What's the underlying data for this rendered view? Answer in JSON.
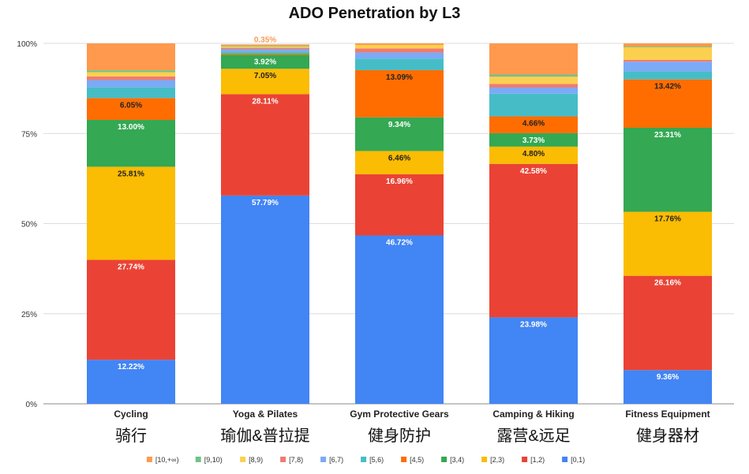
{
  "chart_data": {
    "type": "bar",
    "stacked": true,
    "title": "ADO Penetration by L3",
    "xlabel": "",
    "ylabel": "",
    "ylim": [
      0,
      100
    ],
    "y_ticks": [
      0,
      25,
      50,
      75,
      100
    ],
    "y_tick_labels": [
      "0%",
      "25%",
      "50%",
      "75%",
      "100%"
    ],
    "grid": true,
    "legend_position": "bottom",
    "categories": [
      "Cycling",
      "Yoga & Pilates",
      "Gym Protective Gears",
      "Camping & Hiking",
      "Fitness Equipment"
    ],
    "categories_cn": [
      "骑行",
      "瑜伽&普拉提",
      "健身防护",
      "露营&远足",
      "健身器材"
    ],
    "series": [
      {
        "name": "[0,1)",
        "color": "#4285f4",
        "values": [
          12.22,
          57.79,
          46.72,
          23.98,
          9.36
        ],
        "labels": [
          "12.22%",
          "57.79%",
          "46.72%",
          "23.98%",
          "9.36%"
        ]
      },
      {
        "name": "[1,2)",
        "color": "#ea4335",
        "values": [
          27.74,
          28.11,
          16.96,
          42.58,
          26.16
        ],
        "labels": [
          "27.74%",
          "28.11%",
          "16.96%",
          "42.58%",
          "26.16%"
        ]
      },
      {
        "name": "[2,3)",
        "color": "#fbbc04",
        "values": [
          25.81,
          7.05,
          6.46,
          4.8,
          17.76
        ],
        "labels": [
          "25.81%",
          "7.05%",
          "6.46%",
          "4.80%",
          "17.76%"
        ]
      },
      {
        "name": "[3,4)",
        "color": "#34a853",
        "values": [
          13.0,
          3.92,
          9.34,
          3.73,
          23.31
        ],
        "labels": [
          "13.00%",
          "3.92%",
          "9.34%",
          "3.73%",
          "23.31%"
        ]
      },
      {
        "name": "[4,5)",
        "color": "#ff6d01",
        "values": [
          6.05,
          0.3,
          13.09,
          4.66,
          13.42
        ],
        "labels": [
          "6.05%",
          "",
          "13.09%",
          "4.66%",
          "13.42%"
        ]
      },
      {
        "name": "[5,6)",
        "color": "#46bdc6",
        "values": [
          3.0,
          0.6,
          3.2,
          6.3,
          2.2
        ],
        "labels": [
          "",
          "",
          "",
          "",
          ""
        ]
      },
      {
        "name": "[6,7)",
        "color": "#7baaf7",
        "values": [
          2.0,
          0.6,
          1.7,
          1.7,
          2.7
        ],
        "labels": [
          "",
          "",
          "",
          "",
          ""
        ]
      },
      {
        "name": "[7,8)",
        "color": "#f07b72",
        "values": [
          1.0,
          0.4,
          1.1,
          1.0,
          0.5
        ],
        "labels": [
          "",
          "",
          "",
          "",
          ""
        ]
      },
      {
        "name": "[8,9)",
        "color": "#fcd04f",
        "values": [
          1.2,
          0.4,
          1.0,
          2.0,
          3.5
        ],
        "labels": [
          "",
          "",
          "",
          "",
          ""
        ]
      },
      {
        "name": "[9,10)",
        "color": "#71c287",
        "values": [
          0.5,
          0.18,
          0.0,
          0.6,
          0.2
        ],
        "labels": [
          "",
          "",
          "",
          "",
          ""
        ]
      },
      {
        "name": "[10,+∞)",
        "color": "#ff994d",
        "values": [
          7.48,
          0.35,
          0.43,
          8.64,
          0.9
        ],
        "labels": [
          "",
          "0.35%",
          "",
          "",
          ""
        ]
      }
    ]
  }
}
